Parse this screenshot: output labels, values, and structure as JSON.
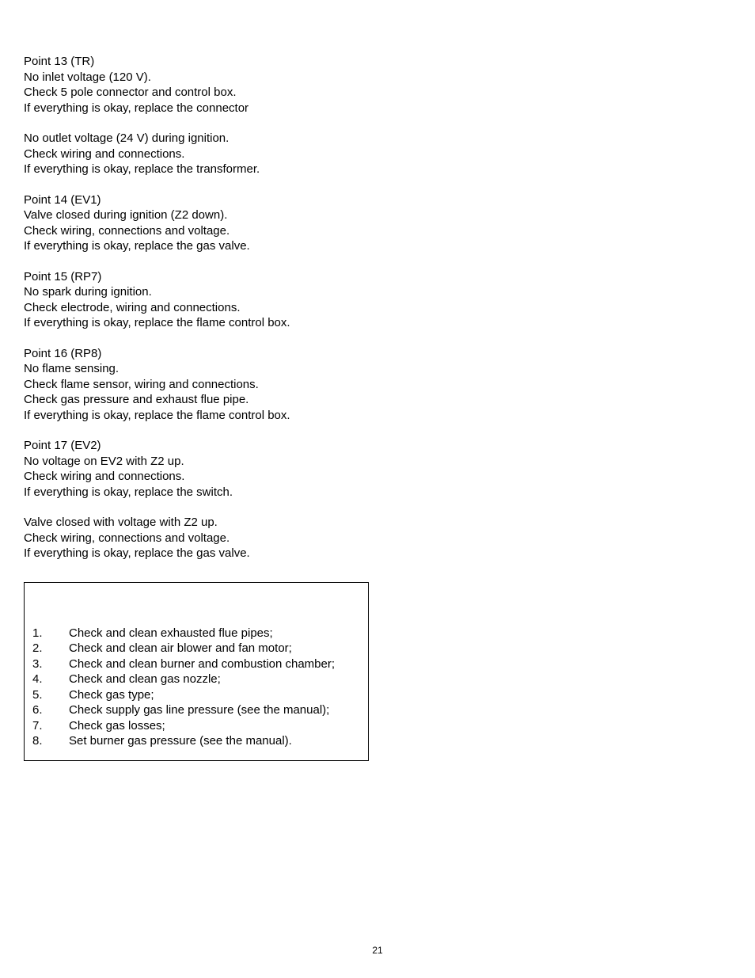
{
  "paragraphs": [
    {
      "lines": [
        "Point 13 (TR)",
        "No inlet voltage (120 V).",
        "Check 5 pole connector and control box.",
        "If everything is okay, replace the connector"
      ]
    },
    {
      "lines": [
        "No outlet voltage (24 V) during ignition.",
        "Check wiring and connections.",
        "If everything is okay, replace the transformer."
      ]
    },
    {
      "lines": [
        "Point 14 (EV1)",
        "Valve closed during ignition (Z2 down).",
        "Check wiring, connections and voltage.",
        "If everything is okay, replace the gas valve."
      ]
    },
    {
      "lines": [
        "Point 15 (RP7)",
        "No spark during ignition.",
        "Check electrode, wiring and connections.",
        "If everything is okay, replace the flame control box."
      ]
    },
    {
      "lines": [
        "Point 16 (RP8)",
        "No flame sensing.",
        "Check  flame  sensor,  wiring  and  connections.",
        " Check gas pressure and exhaust flue pipe.",
        "If everything is okay, replace the flame control box."
      ]
    },
    {
      "lines": [
        "Point 17 (EV2)",
        "No voltage on EV2 with Z2 up.",
        "Check wiring and connections.",
        "If everything is okay, replace the switch."
      ]
    },
    {
      "lines": [
        "Valve closed with voltage with Z2 up.",
        "Check wiring, connections and voltage.",
        "If everything is okay, replace the gas valve."
      ]
    }
  ],
  "checklist": [
    {
      "num": "1.",
      "text": "Check and clean exhausted flue pipes;"
    },
    {
      "num": "2.",
      "text": "Check and clean air blower and fan motor;"
    },
    {
      "num": "3.",
      "text": "Check and clean burner and combustion chamber;"
    },
    {
      "num": "4.",
      "text": "Check and clean gas nozzle;"
    },
    {
      "num": "5.",
      "text": "Check gas type;"
    },
    {
      "num": "6.",
      "text": "Check  supply gas line pressure (see the manual);"
    },
    {
      "num": "7.",
      "text": "Check gas losses;"
    },
    {
      "num": "8.",
      "text": "Set burner gas pressure (see the manual)."
    }
  ],
  "page_number": "21"
}
